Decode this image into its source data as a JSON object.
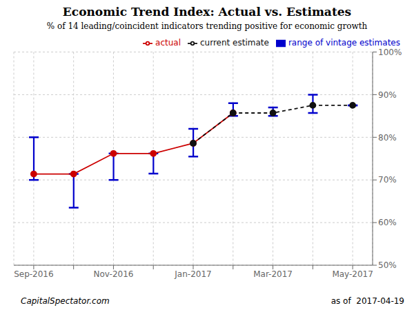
{
  "chart_data": {
    "type": "line",
    "title": "Economic Trend Index: Actual vs. Estimates",
    "subtitle": "% of 14 leading/coincident indicators trending positive for economic growth",
    "annotations": [
      "CapitalSpectator.com",
      "as of  2017-04-19"
    ],
    "categories": [
      "Sep-2016",
      null,
      "Nov-2016",
      null,
      "Jan-2017",
      null,
      "Mar-2017",
      null,
      "May-2017"
    ],
    "series": [
      {
        "name": "actual",
        "color": "#cc0000",
        "marker": "circle",
        "line_style": "solid",
        "values": [
          71.4,
          71.4,
          76.2,
          76.2,
          78.6,
          85.7,
          null,
          null,
          null
        ]
      },
      {
        "name": "current estimate",
        "color": "#111111",
        "marker": "circle",
        "line_style": "dashed",
        "values": [
          null,
          null,
          null,
          null,
          78.6,
          85.7,
          85.7,
          87.5,
          87.5
        ]
      },
      {
        "name": "range of vintage estimates",
        "type": "errorbar",
        "color": "#0000cc",
        "low": [
          70.0,
          63.5,
          70.0,
          71.5,
          75.5,
          85.0,
          85.0,
          85.7,
          87.5
        ],
        "high": [
          80.0,
          71.4,
          76.2,
          76.2,
          82.0,
          88.0,
          87.0,
          90.0,
          87.5
        ]
      }
    ],
    "ylim": [
      50,
      100
    ],
    "yticks": [
      {
        "value": 50,
        "label": "50%"
      },
      {
        "value": 60,
        "label": "60%"
      },
      {
        "value": 70,
        "label": "70%"
      },
      {
        "value": 80,
        "label": "80%"
      },
      {
        "value": 90,
        "label": "90%"
      },
      {
        "value": 100,
        "label": "100%"
      }
    ],
    "grid": true,
    "legend": "upper right"
  }
}
